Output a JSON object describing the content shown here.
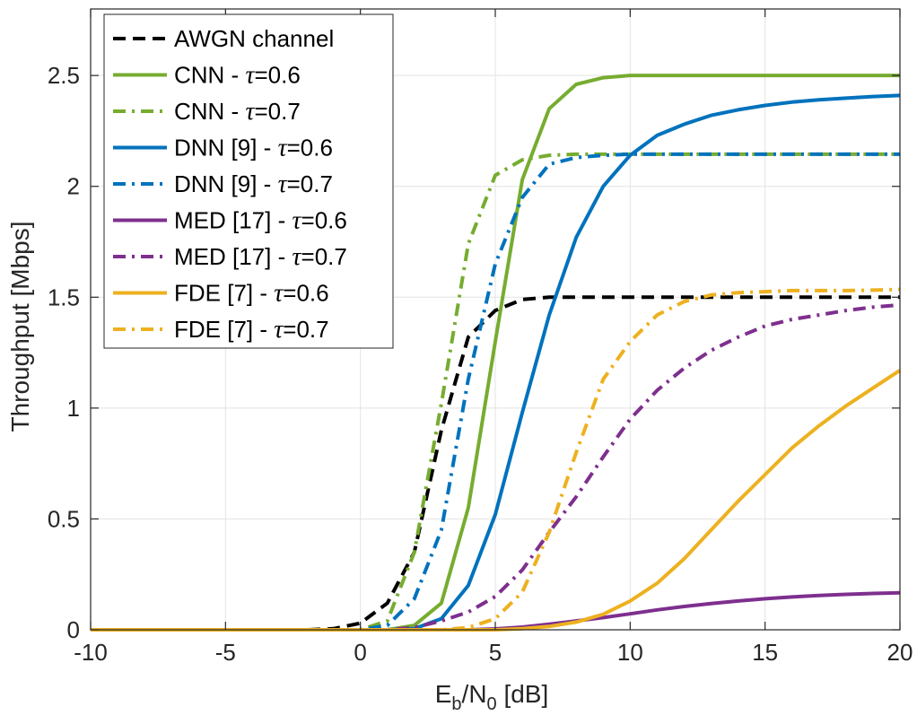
{
  "chart_data": {
    "type": "line",
    "title": "",
    "xlabel": {
      "main": "E",
      "sub1": "b",
      "mid": "/N",
      "sub2": "0",
      "tail": " [dB]"
    },
    "ylabel": "Throughput [Mbps]",
    "xlim": [
      -10,
      20
    ],
    "ylim": [
      0,
      2.8
    ],
    "xticks": [
      -10,
      -5,
      0,
      5,
      10,
      15,
      20
    ],
    "xtick_labels": [
      "-10",
      "-5",
      "0",
      "5",
      "10",
      "15",
      "20"
    ],
    "yticks": [
      0,
      0.5,
      1,
      1.5,
      2,
      2.5
    ],
    "ytick_labels": [
      "0",
      "0.5",
      "1",
      "1.5",
      "2",
      "2.5"
    ],
    "grid": true,
    "legend_position": "top-left",
    "series": [
      {
        "name": "AWGN channel",
        "label_pre": "AWGN channel",
        "label_tau": "",
        "label_post": "",
        "color": "#000000",
        "style": "dashed",
        "x": [
          -10,
          -2,
          -1,
          0,
          1,
          2,
          3,
          4,
          5,
          6,
          7,
          8,
          10,
          12,
          15,
          20
        ],
        "y": [
          0,
          0,
          0.005,
          0.03,
          0.12,
          0.35,
          0.9,
          1.32,
          1.44,
          1.49,
          1.5,
          1.5,
          1.5,
          1.5,
          1.5,
          1.5
        ]
      },
      {
        "name": "CNN - τ=0.6",
        "label_pre": "CNN - ",
        "label_tau": "τ",
        "label_post": "=0.6",
        "color": "#77AC30",
        "style": "solid",
        "x": [
          -10,
          0,
          1,
          2,
          3,
          4,
          5,
          6,
          7,
          8,
          9,
          10,
          12,
          15,
          20
        ],
        "y": [
          0,
          0,
          0,
          0.02,
          0.12,
          0.55,
          1.3,
          2.03,
          2.35,
          2.46,
          2.49,
          2.5,
          2.5,
          2.5,
          2.5
        ]
      },
      {
        "name": "CNN - τ=0.7",
        "label_pre": "CNN - ",
        "label_tau": "τ",
        "label_post": "=0.7",
        "color": "#77AC30",
        "style": "dashdot",
        "x": [
          -10,
          0,
          1,
          2,
          3,
          4,
          5,
          6,
          7,
          8,
          10,
          15,
          20
        ],
        "y": [
          0,
          0,
          0.04,
          0.35,
          1.02,
          1.74,
          2.05,
          2.12,
          2.14,
          2.145,
          2.145,
          2.145,
          2.145
        ]
      },
      {
        "name": "DNN [9] - τ=0.6",
        "label_pre": "DNN [9] - ",
        "label_tau": "τ",
        "label_post": "=0.6",
        "color": "#0072BD",
        "style": "solid",
        "x": [
          -10,
          1,
          2,
          3,
          4,
          5,
          6,
          7,
          8,
          9,
          10,
          11,
          12,
          13,
          14,
          15,
          16,
          17,
          18,
          19,
          20
        ],
        "y": [
          0,
          0,
          0.005,
          0.05,
          0.2,
          0.52,
          0.98,
          1.42,
          1.77,
          2.0,
          2.14,
          2.23,
          2.28,
          2.32,
          2.345,
          2.365,
          2.38,
          2.39,
          2.398,
          2.405,
          2.41
        ]
      },
      {
        "name": "DNN [9] - τ=0.7",
        "label_pre": "DNN [9] - ",
        "label_tau": "τ",
        "label_post": "=0.7",
        "color": "#0072BD",
        "style": "dashdot",
        "x": [
          -10,
          0,
          1,
          2,
          3,
          4,
          5,
          6,
          7,
          8,
          9,
          10,
          15,
          20
        ],
        "y": [
          0,
          0,
          0.02,
          0.14,
          0.45,
          1.13,
          1.65,
          1.95,
          2.1,
          2.13,
          2.14,
          2.145,
          2.145,
          2.145
        ]
      },
      {
        "name": "MED [17] - τ=0.6",
        "label_pre": "MED [17] - ",
        "label_tau": "τ",
        "label_post": "=0.6",
        "color": "#7E2F8E",
        "style": "solid",
        "x": [
          -10,
          4,
          5,
          6,
          7,
          8,
          9,
          10,
          11,
          12,
          13,
          14,
          15,
          16,
          17,
          18,
          19,
          20
        ],
        "y": [
          0,
          0,
          0.004,
          0.012,
          0.025,
          0.04,
          0.055,
          0.072,
          0.09,
          0.105,
          0.118,
          0.13,
          0.14,
          0.148,
          0.155,
          0.16,
          0.164,
          0.167
        ]
      },
      {
        "name": "MED [17] - τ=0.7",
        "label_pre": "MED [17] - ",
        "label_tau": "τ",
        "label_post": "=0.7",
        "color": "#7E2F8E",
        "style": "dashdot",
        "x": [
          -10,
          1,
          2,
          3,
          4,
          5,
          6,
          7,
          8,
          9,
          10,
          11,
          12,
          13,
          14,
          15,
          16,
          17,
          18,
          19,
          20
        ],
        "y": [
          0,
          0,
          0.01,
          0.04,
          0.08,
          0.15,
          0.27,
          0.44,
          0.6,
          0.78,
          0.95,
          1.08,
          1.18,
          1.26,
          1.32,
          1.37,
          1.4,
          1.42,
          1.44,
          1.455,
          1.465
        ]
      },
      {
        "name": "FDE [7] - τ=0.6",
        "label_pre": "FDE [7] - ",
        "label_tau": "τ",
        "label_post": "=0.6",
        "color": "#EDB120",
        "style": "solid",
        "x": [
          -10,
          5,
          6,
          7,
          8,
          9,
          10,
          11,
          12,
          13,
          14,
          15,
          16,
          17,
          18,
          19,
          20
        ],
        "y": [
          0,
          0,
          0.005,
          0.015,
          0.035,
          0.07,
          0.13,
          0.21,
          0.32,
          0.45,
          0.58,
          0.7,
          0.82,
          0.92,
          1.01,
          1.09,
          1.17
        ]
      },
      {
        "name": "FDE [7] - τ=0.7",
        "label_pre": "FDE [7] - ",
        "label_tau": "τ",
        "label_post": "=0.7",
        "color": "#EDB120",
        "style": "dashdot",
        "x": [
          -10,
          3,
          4,
          5,
          6,
          7,
          8,
          9,
          10,
          11,
          12,
          13,
          14,
          15,
          16,
          17,
          18,
          19,
          20
        ],
        "y": [
          0,
          0,
          0.01,
          0.05,
          0.17,
          0.44,
          0.8,
          1.13,
          1.3,
          1.42,
          1.48,
          1.51,
          1.52,
          1.525,
          1.53,
          1.53,
          1.53,
          1.532,
          1.535
        ]
      }
    ]
  }
}
